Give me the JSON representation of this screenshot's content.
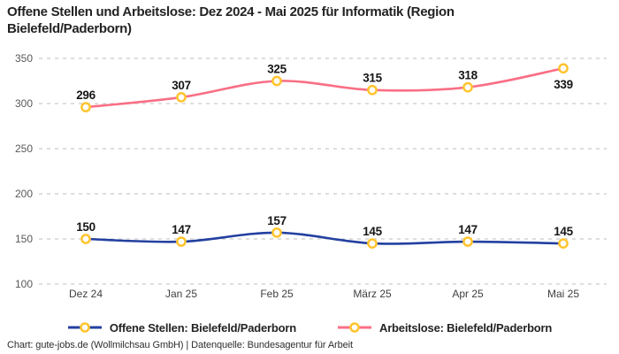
{
  "title": "Offene Stellen und Arbeitslose: Dez 2024 - Mai 2025 für Informatik (Region Bielefeld/Paderborn)",
  "footer": "Chart: gute-jobs.de (Wollmilchsau GmbH) | Datenquelle: Bundesagentur für Arbeit",
  "colors": {
    "open_positions_line": "#2340A0",
    "unemployed_line": "#F96F85",
    "marker_stroke": "#FFC42E",
    "marker_fill": "#FFFFFF",
    "gridline": "#CBCBCB",
    "y_axis_text": "#595959",
    "x_axis_text": "#3F3F3F",
    "value_label": "#161616"
  },
  "legend": {
    "items": [
      {
        "label": "Offene Stellen: Bielefeld/Paderborn"
      },
      {
        "label": "Arbeitslose: Bielefeld/Paderborn"
      }
    ]
  },
  "chart_data": {
    "type": "line",
    "title": "Offene Stellen und Arbeitslose: Dez 2024 - Mai 2025 für Informatik (Region Bielefeld/Paderborn)",
    "categories": [
      "Dez 24",
      "Jan 25",
      "Feb 25",
      "März 25",
      "Apr 25",
      "Mai 25"
    ],
    "series": [
      {
        "name": "Offene Stellen: Bielefeld/Paderborn",
        "values": [
          150,
          147,
          157,
          145,
          147,
          145
        ],
        "color": "#2340A0"
      },
      {
        "name": "Arbeitslose: Bielefeld/Paderborn",
        "values": [
          296,
          307,
          325,
          315,
          318,
          339
        ],
        "color": "#F96F85"
      }
    ],
    "xlabel": "",
    "ylabel": "",
    "ylim": [
      100,
      350
    ],
    "yticks": [
      350,
      300,
      250,
      200,
      150,
      100
    ],
    "grid": "horizontal-dashed",
    "legend_position": "bottom",
    "marker": "circle-white-fill-yellow-stroke",
    "data_labels": true
  }
}
